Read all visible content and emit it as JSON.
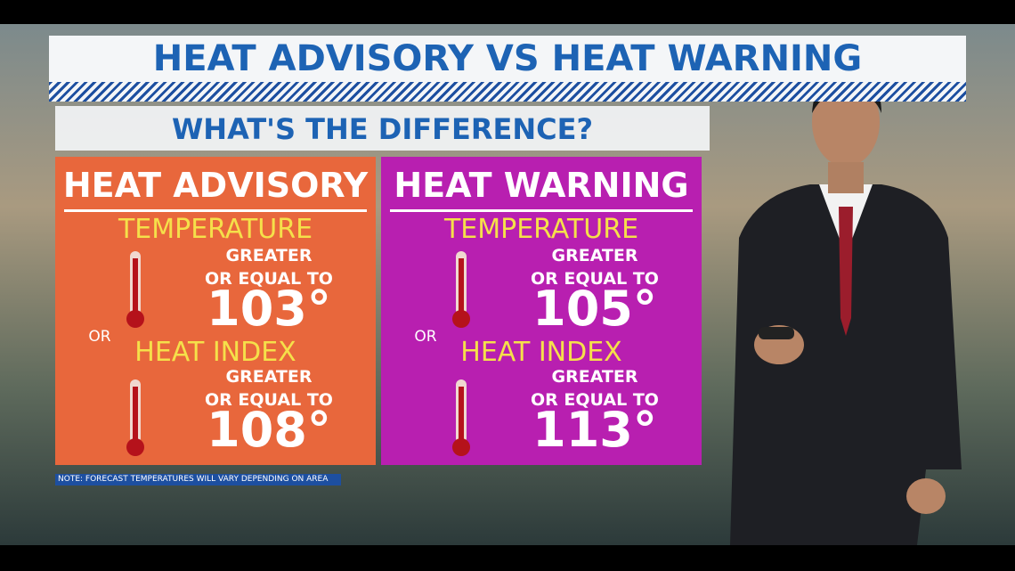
{
  "header": {
    "title": "HEAT ADVISORY VS HEAT WARNING",
    "subtitle": "WHAT'S THE DIFFERENCE?"
  },
  "panels": [
    {
      "title": "HEAT ADVISORY",
      "temperature_label": "TEMPERATURE",
      "temperature_text": [
        "GREATER",
        "OR EQUAL TO"
      ],
      "temperature_value": "103°",
      "or": "OR",
      "heat_index_label": "HEAT INDEX",
      "heat_index_text": [
        "GREATER",
        "OR EQUAL TO"
      ],
      "heat_index_value": "108°"
    },
    {
      "title": "HEAT WARNING",
      "temperature_label": "TEMPERATURE",
      "temperature_text": [
        "GREATER",
        "OR EQUAL TO"
      ],
      "temperature_value": "105°",
      "or": "OR",
      "heat_index_label": "HEAT INDEX",
      "heat_index_text": [
        "GREATER",
        "OR EQUAL TO"
      ],
      "heat_index_value": "113°"
    }
  ],
  "note": "NOTE: FORECAST TEMPERATURES WILL VARY DEPENDING ON AREA"
}
